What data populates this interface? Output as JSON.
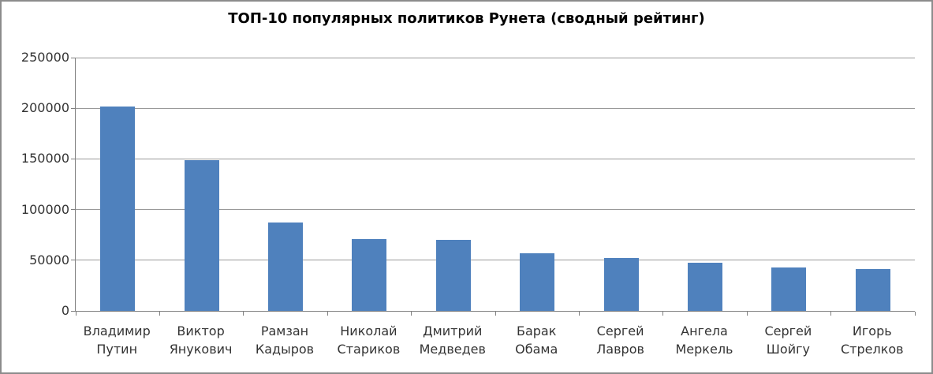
{
  "chart_data": {
    "type": "bar",
    "title": "ТОП-10 популярных политиков Рунета (сводный рейтинг)",
    "categories": [
      "Владимир Путин",
      "Виктор Янукович",
      "Рамзан Кадыров",
      "Николай Стариков",
      "Дмитрий Медведев",
      "Барак Обама",
      "Сергей Лавров",
      "Ангела Меркель",
      "Сергей Шойгу",
      "Игорь Стрелков"
    ],
    "values": [
      201500,
      149000,
      87500,
      70500,
      70000,
      57000,
      52000,
      47500,
      43000,
      41000
    ],
    "xlabel": "",
    "ylabel": "",
    "ylim": [
      0,
      250000
    ],
    "y_ticks": [
      0,
      50000,
      100000,
      150000,
      200000,
      250000
    ],
    "y_tick_labels": [
      "0",
      "50000",
      "100000",
      "150000",
      "200000",
      "250000"
    ],
    "grid": true,
    "legend": "none",
    "bar_color": "#4F81BD"
  },
  "colors": {
    "bar": "#4F81BD",
    "gridline": "#999999",
    "axis": "#808080",
    "frame_border": "#8C8C8C",
    "title_text": "#000000",
    "axis_text": "#333333",
    "background": "#FFFFFF"
  }
}
